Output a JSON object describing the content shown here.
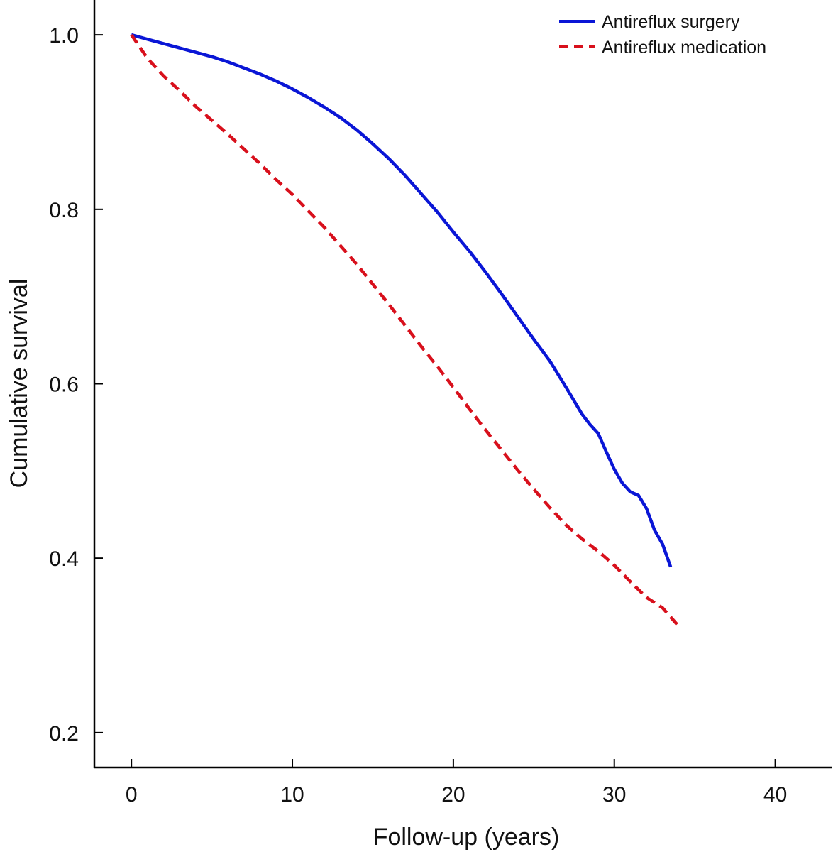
{
  "chart_data": {
    "type": "line",
    "title": "",
    "xlabel": "Follow-up (years)",
    "ylabel": "Cumulative survival",
    "xlim": [
      -2.3,
      43.5
    ],
    "ylim": [
      0.16,
      1.04
    ],
    "xticks": [
      0,
      10,
      20,
      30,
      40
    ],
    "yticks": [
      0.2,
      0.4,
      0.6,
      0.8,
      1.0
    ],
    "xtick_labels": [
      "0",
      "10",
      "20",
      "30",
      "40"
    ],
    "ytick_labels": [
      "0.2",
      "0.4",
      "0.6",
      "0.8",
      "1.0"
    ],
    "grid": false,
    "legend_position": "top-right",
    "series": [
      {
        "name": "Antireflux surgery",
        "color": "#0a16d6",
        "style": "solid",
        "x": [
          0,
          1,
          2,
          3,
          4,
          5,
          6,
          7,
          8,
          9,
          10,
          11,
          12,
          13,
          14,
          15,
          16,
          17,
          18,
          19,
          20,
          21,
          22,
          23,
          24,
          25,
          26,
          27,
          28,
          28.5,
          29,
          29.5,
          30,
          30.5,
          31,
          31.5,
          32,
          32.5,
          33,
          33.5
        ],
        "y": [
          1.0,
          0.995,
          0.99,
          0.985,
          0.98,
          0.975,
          0.969,
          0.962,
          0.955,
          0.947,
          0.938,
          0.928,
          0.917,
          0.905,
          0.891,
          0.875,
          0.858,
          0.839,
          0.818,
          0.797,
          0.774,
          0.752,
          0.728,
          0.703,
          0.677,
          0.651,
          0.626,
          0.596,
          0.565,
          0.553,
          0.543,
          0.522,
          0.502,
          0.486,
          0.476,
          0.472,
          0.457,
          0.432,
          0.416,
          0.39
        ]
      },
      {
        "name": "Antireflux medication",
        "color": "#d8101c",
        "style": "dashed",
        "x": [
          0,
          1,
          2,
          3,
          4,
          5,
          6,
          7,
          8,
          9,
          10,
          11,
          12,
          13,
          14,
          15,
          16,
          17,
          18,
          19,
          20,
          21,
          22,
          23,
          24,
          25,
          26,
          27,
          28,
          29,
          30,
          31,
          32,
          33,
          34
        ],
        "y": [
          1.0,
          0.973,
          0.953,
          0.936,
          0.918,
          0.902,
          0.886,
          0.869,
          0.852,
          0.834,
          0.817,
          0.798,
          0.779,
          0.758,
          0.737,
          0.714,
          0.691,
          0.667,
          0.643,
          0.62,
          0.596,
          0.571,
          0.547,
          0.524,
          0.501,
          0.479,
          0.458,
          0.438,
          0.422,
          0.408,
          0.392,
          0.373,
          0.355,
          0.343,
          0.322
        ]
      }
    ]
  }
}
